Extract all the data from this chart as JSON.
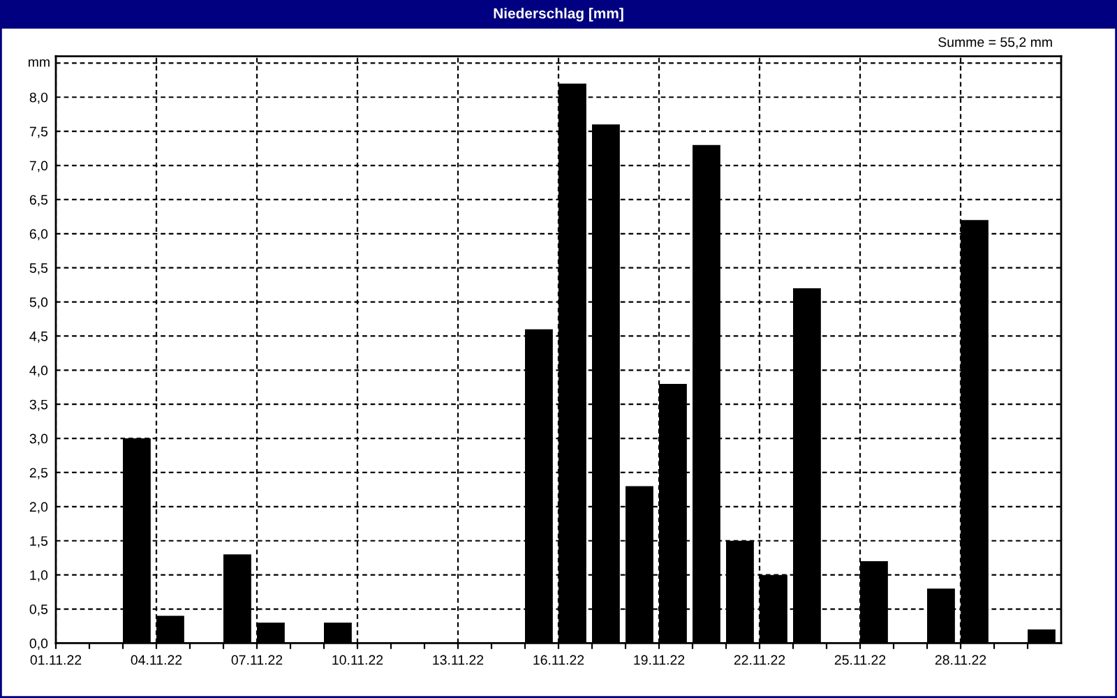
{
  "chart_data": {
    "type": "bar",
    "title": "Niederschlag [mm]",
    "ylabel": "mm",
    "annotations": [
      "Summe = 55,2 mm"
    ],
    "categories": [
      "01.11.22",
      null,
      null,
      "04.11.22",
      null,
      null,
      "07.11.22",
      null,
      null,
      "10.11.22",
      null,
      null,
      "13.11.22",
      null,
      null,
      "16.11.22",
      null,
      null,
      "19.11.22",
      null,
      null,
      "22.11.22",
      null,
      null,
      "25.11.22",
      null,
      null,
      "28.11.22",
      null,
      null
    ],
    "values": [
      null,
      null,
      3.0,
      0.4,
      null,
      1.3,
      0.3,
      null,
      0.3,
      null,
      null,
      null,
      null,
      null,
      4.6,
      8.2,
      7.6,
      2.3,
      3.8,
      7.3,
      1.5,
      1.0,
      5.2,
      null,
      1.2,
      null,
      0.8,
      6.2,
      null,
      0.2
    ],
    "color": "#000000",
    "ylim": [
      0,
      8.6
    ],
    "yticks": [
      {
        "value": 0,
        "label": "0,0"
      },
      {
        "value": 0.5,
        "label": "0,5"
      },
      {
        "value": 1.0,
        "label": "1,0"
      },
      {
        "value": 1.5,
        "label": "1,5"
      },
      {
        "value": 2.0,
        "label": "2,0"
      },
      {
        "value": 2.5,
        "label": "2,5"
      },
      {
        "value": 3.0,
        "label": "3,0"
      },
      {
        "value": 3.5,
        "label": "3,5"
      },
      {
        "value": 4.0,
        "label": "4,0"
      },
      {
        "value": 4.5,
        "label": "4,5"
      },
      {
        "value": 5.0,
        "label": "5,0"
      },
      {
        "value": 5.5,
        "label": "5,5"
      },
      {
        "value": 6.0,
        "label": "6,0"
      },
      {
        "value": 6.5,
        "label": "6,5"
      },
      {
        "value": 7.0,
        "label": "7,0"
      },
      {
        "value": 7.5,
        "label": "7,5"
      },
      {
        "value": 8.0,
        "label": "8,0"
      },
      {
        "value": 8.5,
        "label": null
      }
    ],
    "grid": true
  }
}
